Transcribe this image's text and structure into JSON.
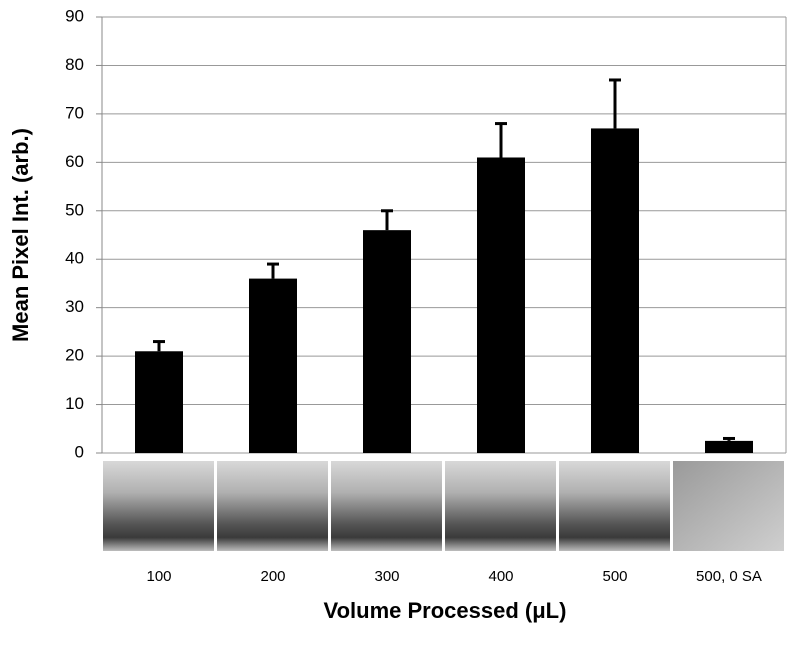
{
  "chart_data": {
    "type": "bar",
    "xlabel": "Volume Processed (μL)",
    "ylabel": "Mean Pixel Int. (arb.)",
    "categories": [
      "100",
      "200",
      "300",
      "400",
      "500",
      "500, 0 SA"
    ],
    "values": [
      21,
      36,
      46,
      61,
      67,
      2.5
    ],
    "errors": [
      2,
      3,
      4,
      7,
      10,
      0.5
    ],
    "color": "#000000",
    "ylim": [
      0,
      90
    ],
    "yticks": [
      0,
      10,
      20,
      30,
      40,
      50,
      60,
      70,
      80,
      90
    ],
    "grid": true
  }
}
